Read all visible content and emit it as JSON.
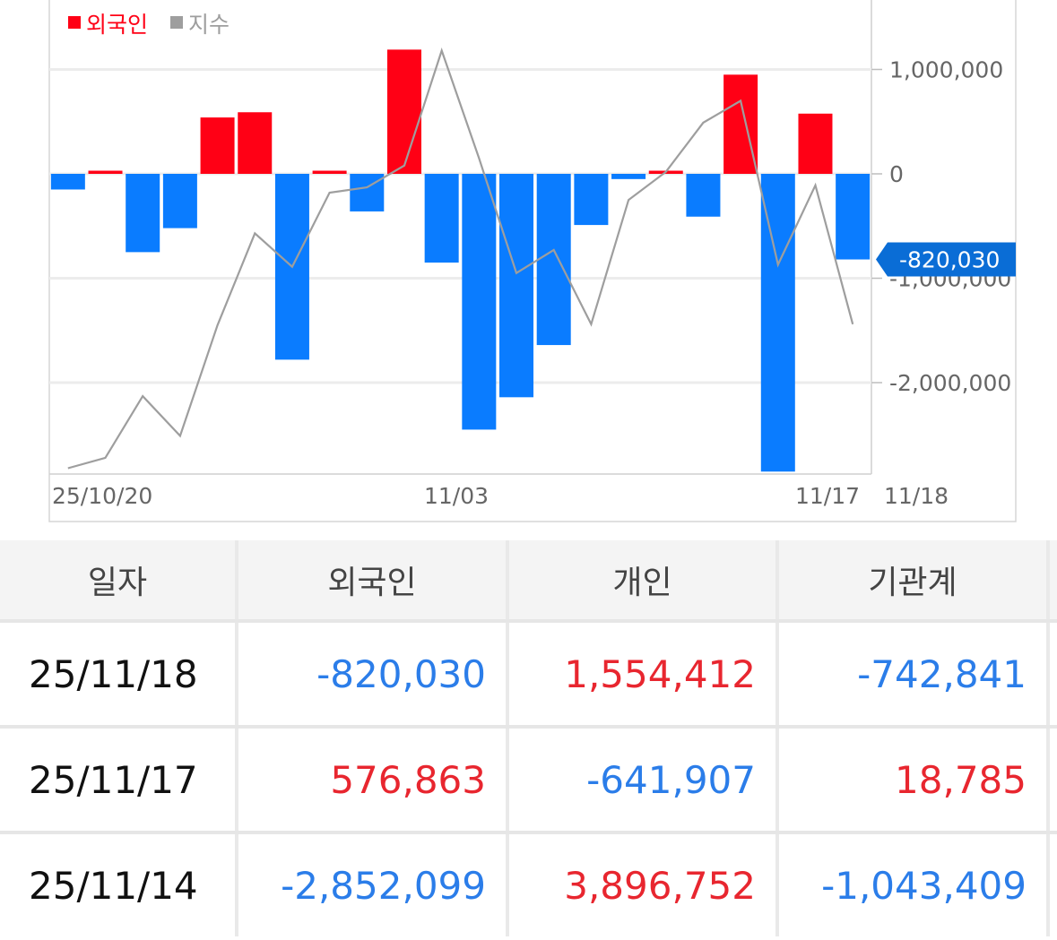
{
  "chart_data": {
    "type": "bar",
    "legend": [
      {
        "label": "외국인",
        "color": "#ff0015"
      },
      {
        "label": "지수",
        "color": "#9e9e9e"
      }
    ],
    "colors": {
      "positive": "#ff0015",
      "negative": "#0a7cff",
      "line": "#9e9e9e",
      "tag": "#0a6dd6"
    },
    "yticks": [
      {
        "value": 1000000,
        "label": "1,000,000"
      },
      {
        "value": 0,
        "label": "0"
      },
      {
        "value": -1000000,
        "label": "-1,000,000"
      },
      {
        "value": -2000000,
        "label": "-2,000,000"
      }
    ],
    "ylim": [
      -2900000,
      1700000
    ],
    "xlabels": [
      {
        "index": 0,
        "label": "25/10/20"
      },
      {
        "index": 10,
        "label": "11/03"
      },
      {
        "index": 20,
        "label": "11/17"
      },
      {
        "index": 22,
        "label": "11/18"
      }
    ],
    "last_value_tag": "-820,030",
    "bars": [
      -150000,
      30000,
      -750000,
      -520000,
      540000,
      590000,
      -1780000,
      30000,
      -360000,
      1190000,
      -850000,
      -2450000,
      -2140000,
      -1640000,
      -490000,
      -50000,
      30000,
      -410000,
      950000,
      -2852099,
      576863,
      -820030
    ],
    "index_series": [
      -2820000,
      -2720000,
      -2130000,
      -2510000,
      -1450000,
      -570000,
      -890000,
      -180000,
      -130000,
      80000,
      1180000,
      150000,
      -950000,
      -730000,
      -1440000,
      -250000,
      20000,
      490000,
      700000,
      -870000,
      -110000,
      -1440000
    ]
  },
  "table": {
    "headers": [
      "일자",
      "외국인",
      "개인",
      "기관계"
    ],
    "rows": [
      {
        "date": "25/11/18",
        "foreign": "-820,030",
        "individual": "1,554,412",
        "institution": "-742,841"
      },
      {
        "date": "25/11/17",
        "foreign": "576,863",
        "individual": "-641,907",
        "institution": "18,785"
      },
      {
        "date": "25/11/14",
        "foreign": "-2,852,099",
        "individual": "3,896,752",
        "institution": "-1,043,409"
      }
    ]
  }
}
